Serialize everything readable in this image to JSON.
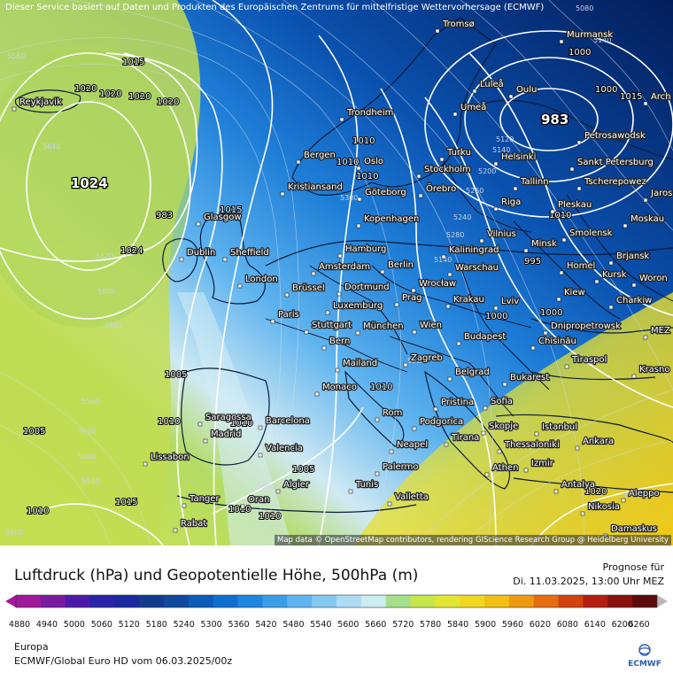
{
  "header": {
    "disclaimer": "Dieser Service basiert auf Daten und Produkten des Europäischen Zentrums für mittelfristige Wettervorhersage (ECMWF)"
  },
  "map": {
    "attribution": "Map data © OpenStreetMap contributors, rendering GIScience Research Group @ Heidelberg University",
    "cities": [
      {
        "name": "Reykjavik"
      },
      {
        "name": "Tromsø"
      },
      {
        "name": "Murmansk"
      },
      {
        "name": "Luleå"
      },
      {
        "name": "Oulu"
      },
      {
        "name": "Umeå"
      },
      {
        "name": "Trondheim"
      },
      {
        "name": "Arch"
      },
      {
        "name": "Petrosawodsk"
      },
      {
        "name": "Bergen"
      },
      {
        "name": "Oslo"
      },
      {
        "name": "Turku"
      },
      {
        "name": "Helsinki"
      },
      {
        "name": "Sankt Petersburg"
      },
      {
        "name": "Stockholm"
      },
      {
        "name": "Kristiansand"
      },
      {
        "name": "Göteborg"
      },
      {
        "name": "Örebro"
      },
      {
        "name": "Tallinn"
      },
      {
        "name": "Tscherepowez"
      },
      {
        "name": "Jaros"
      },
      {
        "name": "Glasgow"
      },
      {
        "name": "Kopenhagen"
      },
      {
        "name": "Riga"
      },
      {
        "name": "Pleskau"
      },
      {
        "name": "Moskau"
      },
      {
        "name": "Dublin"
      },
      {
        "name": "Sheffield"
      },
      {
        "name": "Hamburg"
      },
      {
        "name": "Vilnius"
      },
      {
        "name": "Smolensk"
      },
      {
        "name": "Minsk"
      },
      {
        "name": "Kaliningrad"
      },
      {
        "name": "Amsterdam"
      },
      {
        "name": "Berlin"
      },
      {
        "name": "Brjansk"
      },
      {
        "name": "London"
      },
      {
        "name": "Warschau"
      },
      {
        "name": "Homel"
      },
      {
        "name": "Kursk"
      },
      {
        "name": "Woron"
      },
      {
        "name": "Brüssel"
      },
      {
        "name": "Dortmund"
      },
      {
        "name": "Wrocław"
      },
      {
        "name": "Kiew"
      },
      {
        "name": "Prag"
      },
      {
        "name": "Krakau"
      },
      {
        "name": "Charkiw"
      },
      {
        "name": "Luxemburg"
      },
      {
        "name": "Lviv"
      },
      {
        "name": "Paris"
      },
      {
        "name": "Stuttgart"
      },
      {
        "name": "München"
      },
      {
        "name": "Wien"
      },
      {
        "name": "Dnipropetrowsk"
      },
      {
        "name": "Budapest"
      },
      {
        "name": "Chisinău"
      },
      {
        "name": "MEZ"
      },
      {
        "name": "Bern"
      },
      {
        "name": "Zagreb"
      },
      {
        "name": "Tiraspol"
      },
      {
        "name": "Mailand"
      },
      {
        "name": "Belgrad"
      },
      {
        "name": "Krasno"
      },
      {
        "name": "Monaco"
      },
      {
        "name": "Bukarest"
      },
      {
        "name": "Pristina"
      },
      {
        "name": "Sofia"
      },
      {
        "name": "Saragossa"
      },
      {
        "name": "Barcelona"
      },
      {
        "name": "Rom"
      },
      {
        "name": "Podgorica"
      },
      {
        "name": "Skopje"
      },
      {
        "name": "Istanbul"
      },
      {
        "name": "Madrid"
      },
      {
        "name": "Tirana"
      },
      {
        "name": "Thessaloniki"
      },
      {
        "name": "Ankara"
      },
      {
        "name": "Lissabon"
      },
      {
        "name": "Valencia"
      },
      {
        "name": "Neapel"
      },
      {
        "name": "Izmir"
      },
      {
        "name": "Palermo"
      },
      {
        "name": "Athen"
      },
      {
        "name": "Algier"
      },
      {
        "name": "Tunis"
      },
      {
        "name": "Antalya"
      },
      {
        "name": "Tanger"
      },
      {
        "name": "Oran"
      },
      {
        "name": "Valletta"
      },
      {
        "name": "Aleppo"
      },
      {
        "name": "Nikosia"
      },
      {
        "name": "Rabat"
      },
      {
        "name": "Damaskus"
      }
    ],
    "pressure_labels": [
      "1015",
      "1020",
      "1020",
      "1020",
      "1024",
      "1020",
      "1015",
      "1010",
      "1010",
      "1005",
      "1010",
      "1010",
      "1010",
      "1005",
      "1010",
      "1010",
      "1005",
      "1000",
      "1000",
      "1000",
      "983",
      "995",
      "1010",
      "1000",
      "1020",
      "1015",
      "1010",
      "1010",
      "1015"
    ],
    "height_labels": [
      "5580",
      "5640",
      "5620",
      "5600",
      "5580",
      "5560",
      "5600",
      "5620",
      "5540",
      "5560",
      "5120",
      "5140",
      "5200",
      "5260",
      "5240",
      "5280",
      "5300",
      "5140",
      "5720",
      "5080",
      "5140",
      "5600",
      "5680"
    ],
    "centers": [
      {
        "value": "1024"
      },
      {
        "value": "983"
      }
    ]
  },
  "panel": {
    "title": "Luftdruck (hPa) und Geopotentielle Höhe, 500hPa (m)",
    "forecast_label": "Prognose für",
    "forecast_date": "Di. 11.03.2025, 13:00 Uhr MEZ",
    "region": "Europa",
    "model_run": "ECMWF/Global Euro HD vom  06.03.2025/00z",
    "logo_text": "ECMWF"
  },
  "legend": {
    "ticks": [
      "4880",
      "4940",
      "5000",
      "5060",
      "5120",
      "5180",
      "5240",
      "5300",
      "5360",
      "5420",
      "5480",
      "5540",
      "5600",
      "5660",
      "5720",
      "5780",
      "5840",
      "5900",
      "5960",
      "6020",
      "6080",
      "6140",
      "6200",
      "6260"
    ],
    "colors": [
      "#a0199a",
      "#7a1a9e",
      "#4d1aa8",
      "#2a22a8",
      "#1a2a9e",
      "#123a8e",
      "#0f4a9c",
      "#0a5cb8",
      "#0f6fd0",
      "#1f86df",
      "#3b9de8",
      "#5fb4ef",
      "#86c8f2",
      "#aedcf4",
      "#ccecf0",
      "#a6e08a",
      "#c6e64a",
      "#e2e630",
      "#f0d820",
      "#f2c014",
      "#ee9a10",
      "#e66c10",
      "#d2420e",
      "#b41e10",
      "#8a100e",
      "#5e0a0a"
    ]
  }
}
